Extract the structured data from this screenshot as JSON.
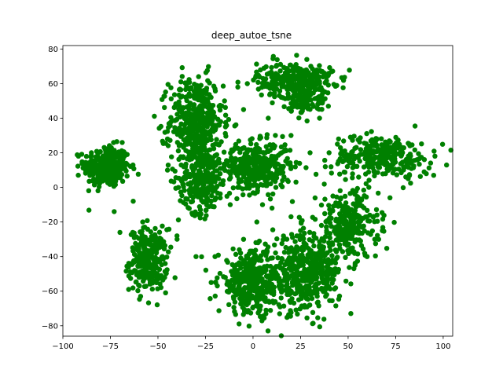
{
  "chart_data": {
    "type": "scatter",
    "title": "deep_autoe_tsne",
    "xlabel": "",
    "ylabel": "",
    "xlim": [
      -100,
      105
    ],
    "ylim": [
      -86,
      82
    ],
    "xticks": [
      -100,
      -75,
      -50,
      -25,
      0,
      25,
      50,
      75,
      100
    ],
    "yticks": [
      -80,
      -60,
      -40,
      -20,
      0,
      20,
      40,
      60,
      80
    ],
    "xtick_labels": [
      "−100",
      "−75",
      "−50",
      "−25",
      "0",
      "25",
      "50",
      "75",
      "100"
    ],
    "ytick_labels": [
      "−80",
      "−60",
      "−40",
      "−20",
      "0",
      "20",
      "40",
      "60",
      "80"
    ],
    "grid": false,
    "point_color": "#008000",
    "clusters": [
      {
        "name": "left",
        "center": [
          -77,
          12
        ],
        "spread": [
          6,
          6
        ],
        "count": 320
      },
      {
        "name": "lower-left",
        "center": [
          -55,
          -42
        ],
        "spread": [
          5,
          9
        ],
        "count": 260
      },
      {
        "name": "upper-mid",
        "center": [
          -30,
          38
        ],
        "spread": [
          7,
          13
        ],
        "count": 420
      },
      {
        "name": "mid-left",
        "center": [
          -27,
          5
        ],
        "spread": [
          6,
          10
        ],
        "count": 260
      },
      {
        "name": "center",
        "center": [
          2,
          12
        ],
        "spread": [
          9,
          7
        ],
        "count": 380
      },
      {
        "name": "top-center",
        "center": [
          22,
          62
        ],
        "spread": [
          10,
          5
        ],
        "count": 300
      },
      {
        "name": "top-center-lower",
        "center": [
          28,
          50
        ],
        "spread": [
          5,
          4
        ],
        "count": 80
      },
      {
        "name": "right-band",
        "center": [
          68,
          18
        ],
        "spread": [
          13,
          6
        ],
        "count": 280
      },
      {
        "name": "mid-right",
        "center": [
          50,
          -22
        ],
        "spread": [
          8,
          10
        ],
        "count": 280
      },
      {
        "name": "bottom-center",
        "center": [
          0,
          -55
        ],
        "spread": [
          9,
          9
        ],
        "count": 360
      },
      {
        "name": "bottom-right",
        "center": [
          28,
          -50
        ],
        "spread": [
          9,
          11
        ],
        "count": 420
      }
    ],
    "outliers": [
      [
        -63,
        -8
      ],
      [
        -70,
        -26
      ],
      [
        -73,
        -14
      ],
      [
        -52,
        -54
      ],
      [
        -45,
        28
      ],
      [
        -33,
        28
      ],
      [
        -20,
        -40
      ],
      [
        -22,
        -55
      ],
      [
        -18,
        5
      ],
      [
        -10,
        22
      ],
      [
        -5,
        45
      ],
      [
        -5,
        -30
      ],
      [
        -8,
        0
      ],
      [
        -12,
        -10
      ],
      [
        2,
        -20
      ],
      [
        10,
        -12
      ],
      [
        15,
        20
      ],
      [
        20,
        30
      ],
      [
        25,
        -25
      ],
      [
        35,
        40
      ],
      [
        38,
        12
      ],
      [
        40,
        20
      ],
      [
        42,
        -5
      ],
      [
        45,
        28
      ],
      [
        55,
        -10
      ],
      [
        60,
        -40
      ],
      [
        64,
        -30
      ],
      [
        68,
        -25
      ],
      [
        72,
        -6
      ],
      [
        90,
        9
      ],
      [
        95,
        7
      ],
      [
        -15,
        50
      ],
      [
        -3,
        60
      ],
      [
        -8,
        58
      ],
      [
        8,
        40
      ],
      [
        30,
        20
      ],
      [
        -45,
        10
      ],
      [
        -40,
        -28
      ],
      [
        -58,
        -20
      ],
      [
        -30,
        -40
      ],
      [
        5,
        -10
      ],
      [
        12,
        0
      ]
    ]
  }
}
